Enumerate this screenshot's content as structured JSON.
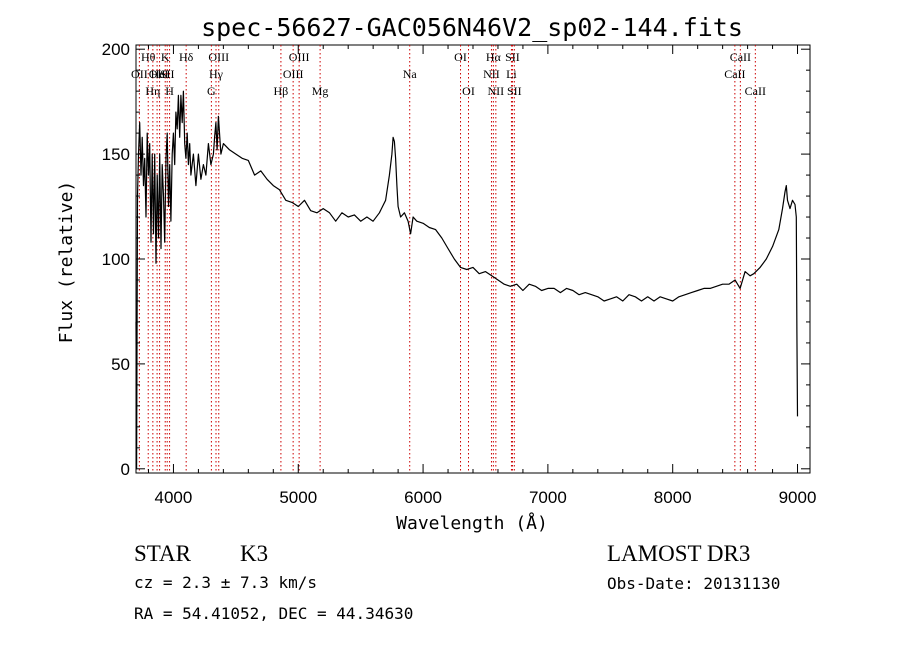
{
  "colors": {
    "background": "#ffffff",
    "axis": "#000000",
    "spectrum": "#000000",
    "line_marker": "#cc0000"
  },
  "chart_data": {
    "type": "line",
    "title": "spec-56627-GAC056N46V2_sp02-144.fits",
    "xlabel": "Wavelength (Å)",
    "ylabel": "Flux (relative)",
    "xlim": [
      3700,
      9100
    ],
    "ylim": [
      -2,
      202
    ],
    "x_ticks": [
      {
        "v": 4000,
        "label": "4000"
      },
      {
        "v": 5000,
        "label": "5000"
      },
      {
        "v": 6000,
        "label": "6000"
      },
      {
        "v": 7000,
        "label": "7000"
      },
      {
        "v": 8000,
        "label": "8000"
      },
      {
        "v": 9000,
        "label": "9000"
      }
    ],
    "y_ticks": [
      {
        "v": 0,
        "label": "0"
      },
      {
        "v": 50,
        "label": "50"
      },
      {
        "v": 100,
        "label": "100"
      },
      {
        "v": 150,
        "label": "150"
      },
      {
        "v": 200,
        "label": "200"
      }
    ],
    "x_minor_step": 200,
    "y_minor_step": 10,
    "spectrum": [
      [
        3700,
        70
      ],
      [
        3705,
        0
      ],
      [
        3712,
        130
      ],
      [
        3720,
        150
      ],
      [
        3730,
        165
      ],
      [
        3740,
        140
      ],
      [
        3750,
        158
      ],
      [
        3760,
        135
      ],
      [
        3770,
        148
      ],
      [
        3780,
        120
      ],
      [
        3790,
        160
      ],
      [
        3800,
        140
      ],
      [
        3810,
        155
      ],
      [
        3820,
        108
      ],
      [
        3830,
        150
      ],
      [
        3840,
        112
      ],
      [
        3850,
        150
      ],
      [
        3860,
        98
      ],
      [
        3870,
        140
      ],
      [
        3880,
        110
      ],
      [
        3890,
        150
      ],
      [
        3900,
        105
      ],
      [
        3910,
        145
      ],
      [
        3920,
        130
      ],
      [
        3930,
        108
      ],
      [
        3940,
        148
      ],
      [
        3950,
        160
      ],
      [
        3960,
        125
      ],
      [
        3970,
        145
      ],
      [
        3980,
        118
      ],
      [
        3990,
        150
      ],
      [
        4000,
        160
      ],
      [
        4010,
        145
      ],
      [
        4020,
        170
      ],
      [
        4030,
        162
      ],
      [
        4040,
        178
      ],
      [
        4050,
        158
      ],
      [
        4060,
        178
      ],
      [
        4070,
        165
      ],
      [
        4080,
        180
      ],
      [
        4090,
        155
      ],
      [
        4100,
        148
      ],
      [
        4110,
        160
      ],
      [
        4120,
        145
      ],
      [
        4130,
        155
      ],
      [
        4140,
        140
      ],
      [
        4160,
        150
      ],
      [
        4180,
        135
      ],
      [
        4200,
        150
      ],
      [
        4220,
        138
      ],
      [
        4240,
        145
      ],
      [
        4260,
        140
      ],
      [
        4280,
        155
      ],
      [
        4300,
        145
      ],
      [
        4320,
        150
      ],
      [
        4330,
        158
      ],
      [
        4340,
        165
      ],
      [
        4350,
        152
      ],
      [
        4360,
        168
      ],
      [
        4380,
        150
      ],
      [
        4400,
        155
      ],
      [
        4450,
        152
      ],
      [
        4500,
        150
      ],
      [
        4550,
        148
      ],
      [
        4600,
        147
      ],
      [
        4650,
        140
      ],
      [
        4700,
        142
      ],
      [
        4750,
        138
      ],
      [
        4800,
        135
      ],
      [
        4850,
        133
      ],
      [
        4900,
        128
      ],
      [
        4950,
        127
      ],
      [
        5000,
        125
      ],
      [
        5050,
        128
      ],
      [
        5100,
        123
      ],
      [
        5150,
        122
      ],
      [
        5200,
        124
      ],
      [
        5250,
        122
      ],
      [
        5300,
        118
      ],
      [
        5350,
        122
      ],
      [
        5400,
        120
      ],
      [
        5450,
        121
      ],
      [
        5500,
        118
      ],
      [
        5550,
        120
      ],
      [
        5600,
        118
      ],
      [
        5650,
        122
      ],
      [
        5700,
        128
      ],
      [
        5730,
        140
      ],
      [
        5750,
        150
      ],
      [
        5760,
        158
      ],
      [
        5770,
        156
      ],
      [
        5780,
        148
      ],
      [
        5790,
        135
      ],
      [
        5800,
        125
      ],
      [
        5820,
        120
      ],
      [
        5850,
        122
      ],
      [
        5880,
        118
      ],
      [
        5900,
        112
      ],
      [
        5920,
        120
      ],
      [
        5950,
        118
      ],
      [
        6000,
        117
      ],
      [
        6050,
        115
      ],
      [
        6100,
        114
      ],
      [
        6150,
        110
      ],
      [
        6200,
        105
      ],
      [
        6250,
        100
      ],
      [
        6300,
        96
      ],
      [
        6350,
        95
      ],
      [
        6400,
        96
      ],
      [
        6450,
        93
      ],
      [
        6500,
        94
      ],
      [
        6550,
        92
      ],
      [
        6600,
        90
      ],
      [
        6650,
        88
      ],
      [
        6700,
        87
      ],
      [
        6750,
        88
      ],
      [
        6800,
        85
      ],
      [
        6850,
        88
      ],
      [
        6900,
        87
      ],
      [
        6950,
        85
      ],
      [
        7000,
        86
      ],
      [
        7050,
        86
      ],
      [
        7100,
        84
      ],
      [
        7150,
        86
      ],
      [
        7200,
        85
      ],
      [
        7250,
        83
      ],
      [
        7300,
        84
      ],
      [
        7350,
        83
      ],
      [
        7400,
        82
      ],
      [
        7450,
        80
      ],
      [
        7500,
        81
      ],
      [
        7550,
        82
      ],
      [
        7600,
        80
      ],
      [
        7650,
        83
      ],
      [
        7700,
        82
      ],
      [
        7750,
        80
      ],
      [
        7800,
        82
      ],
      [
        7850,
        80
      ],
      [
        7900,
        82
      ],
      [
        7950,
        81
      ],
      [
        8000,
        80
      ],
      [
        8050,
        82
      ],
      [
        8100,
        83
      ],
      [
        8150,
        84
      ],
      [
        8200,
        85
      ],
      [
        8250,
        86
      ],
      [
        8300,
        86
      ],
      [
        8350,
        87
      ],
      [
        8400,
        88
      ],
      [
        8450,
        88
      ],
      [
        8500,
        90
      ],
      [
        8540,
        86
      ],
      [
        8580,
        94
      ],
      [
        8620,
        92
      ],
      [
        8650,
        93
      ],
      [
        8700,
        96
      ],
      [
        8750,
        100
      ],
      [
        8800,
        106
      ],
      [
        8850,
        114
      ],
      [
        8880,
        124
      ],
      [
        8900,
        132
      ],
      [
        8910,
        135
      ],
      [
        8920,
        128
      ],
      [
        8940,
        124
      ],
      [
        8960,
        128
      ],
      [
        8980,
        126
      ],
      [
        8990,
        120
      ],
      [
        8995,
        65
      ],
      [
        9000,
        25
      ]
    ],
    "line_markers": [
      {
        "name": "OII",
        "x": 3727,
        "row": 2
      },
      {
        "name": "Hθ",
        "x": 3798,
        "row": 1
      },
      {
        "name": "Hη",
        "x": 3835,
        "row": 3
      },
      {
        "name": "OII",
        "x": 3869,
        "row": 2
      },
      {
        "name": "HeI",
        "x": 3889,
        "row": 2
      },
      {
        "name": "K",
        "x": 3934,
        "row": 1
      },
      {
        "name": "SII",
        "x": 3950,
        "row": 2
      },
      {
        "name": "H",
        "x": 3969,
        "row": 3
      },
      {
        "name": "Hδ",
        "x": 4102,
        "row": 1
      },
      {
        "name": "G",
        "x": 4304,
        "row": 3
      },
      {
        "name": "Hγ",
        "x": 4341,
        "row": 2
      },
      {
        "name": "OIII",
        "x": 4363,
        "row": 1
      },
      {
        "name": "Hβ",
        "x": 4861,
        "row": 3
      },
      {
        "name": "OIII",
        "x": 4959,
        "row": 2
      },
      {
        "name": "OIII",
        "x": 5007,
        "row": 1
      },
      {
        "name": "Mg",
        "x": 5175,
        "row": 3
      },
      {
        "name": "Na",
        "x": 5893,
        "row": 2
      },
      {
        "name": "OI",
        "x": 6300,
        "row": 1
      },
      {
        "name": "OI",
        "x": 6364,
        "row": 3
      },
      {
        "name": "NII",
        "x": 6548,
        "row": 2
      },
      {
        "name": "Hα",
        "x": 6563,
        "row": 1
      },
      {
        "name": "NII",
        "x": 6583,
        "row": 3
      },
      {
        "name": "Li",
        "x": 6708,
        "row": 2
      },
      {
        "name": "SII",
        "x": 6716,
        "row": 1
      },
      {
        "name": "SII",
        "x": 6731,
        "row": 3
      },
      {
        "name": "CaII",
        "x": 8498,
        "row": 2
      },
      {
        "name": "CaII",
        "x": 8542,
        "row": 1
      },
      {
        "name": "CaII",
        "x": 8662,
        "row": 3
      }
    ]
  },
  "info": {
    "class_label": "STAR",
    "subclass": "K3",
    "cz": "cz = 2.3 ± 7.3 km/s",
    "coords": "RA =  54.41052, DEC =  44.34630",
    "survey": "LAMOST DR3",
    "obs_date": "Obs-Date: 20131130"
  }
}
